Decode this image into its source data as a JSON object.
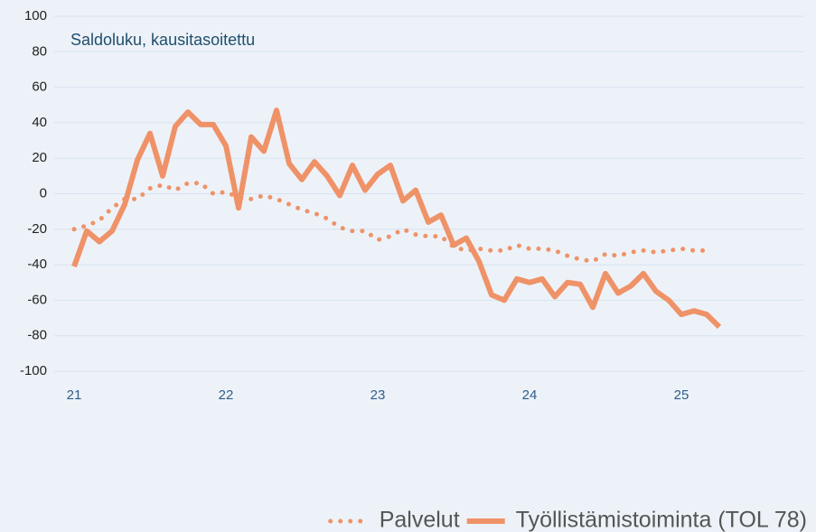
{
  "chart_data": {
    "type": "line",
    "annotation": "Saldoluku, kausitasoitettu",
    "categories": [
      "21",
      null,
      null,
      null,
      null,
      null,
      null,
      null,
      null,
      null,
      null,
      null,
      "22",
      null,
      null,
      null,
      null,
      null,
      null,
      null,
      null,
      null,
      null,
      null,
      "23",
      null,
      null,
      null,
      null,
      null,
      null,
      null,
      null,
      null,
      null,
      null,
      "24",
      null,
      null,
      null,
      null,
      null,
      null,
      null,
      null,
      null,
      null,
      null,
      "25",
      null,
      null,
      null
    ],
    "series": [
      {
        "name": "Palvelut",
        "color": "#ef9268",
        "style": "dotted",
        "values": [
          -20,
          -18,
          -15,
          -8,
          -3,
          -3,
          3,
          5,
          2,
          6,
          6,
          0,
          1,
          -2,
          -3,
          -1,
          -3,
          -6,
          -9,
          -11,
          -14,
          -19,
          -21,
          -21,
          -26,
          -24,
          -20,
          -23,
          -24,
          -24,
          -30,
          -32,
          -31,
          -32,
          -32,
          -29,
          -31,
          -31,
          -32,
          -35,
          -37,
          -38,
          -34,
          -35,
          -33,
          -32,
          -33,
          -32,
          -31,
          -32,
          -32,
          null
        ]
      },
      {
        "name": "Työllistämistoiminta (TOL 78)",
        "color": "#ef9268",
        "style": "solid",
        "values": [
          -41,
          -21,
          -27,
          -21,
          -6,
          19,
          34,
          10,
          38,
          46,
          39,
          39,
          27,
          -8,
          32,
          24,
          47,
          17,
          8,
          18,
          10,
          -1,
          16,
          2,
          11,
          16,
          -4,
          2,
          -16,
          -12,
          -29,
          -25,
          -38,
          -57,
          -60,
          -48,
          -50,
          -48,
          -58,
          -50,
          -51,
          -64,
          -45,
          -56,
          -52,
          -45,
          -55,
          -60,
          -68,
          -66,
          -68,
          -75
        ]
      }
    ],
    "ylim": [
      -100,
      100
    ],
    "yticks": [
      -100,
      -80,
      -60,
      -40,
      -20,
      0,
      20,
      40,
      60,
      80,
      100
    ],
    "grid": true,
    "legend": "lower right"
  }
}
